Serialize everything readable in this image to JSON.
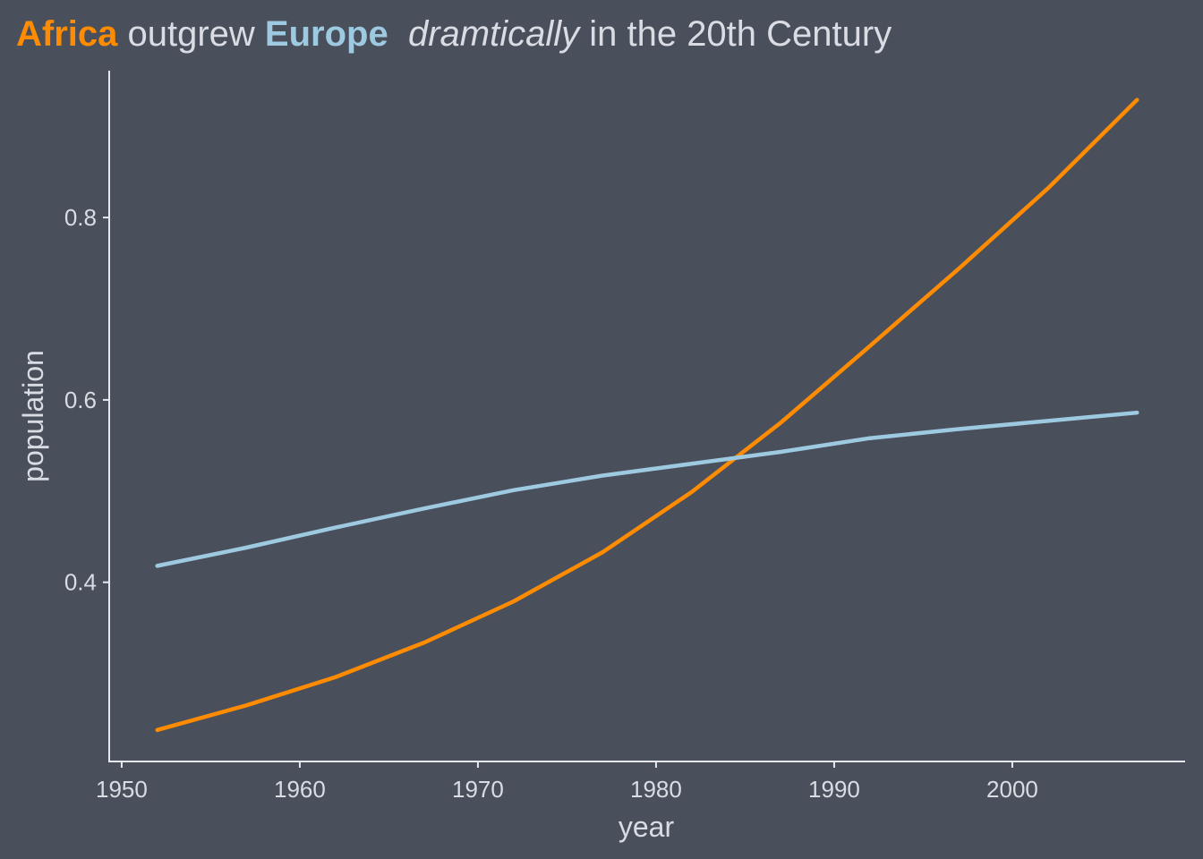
{
  "chart_data": {
    "type": "line",
    "title": {
      "africa_word": "Africa",
      "middle_text": " outgrew ",
      "europe_word": "Europe",
      "gap_text": "  ",
      "emphasis_word": "dramtically",
      "tail_text": " in the 20th Century"
    },
    "xlabel": "year",
    "ylabel": "population",
    "xlim": [
      1949.3,
      2009.7
    ],
    "ylim": [
      0.2035,
      0.961
    ],
    "x_ticks": [
      1950,
      1960,
      1970,
      1980,
      1990,
      2000
    ],
    "y_ticks": [
      0.4,
      0.6,
      0.8
    ],
    "x_tick_labels": [
      "1950",
      "1960",
      "1970",
      "1980",
      "1990",
      "2000"
    ],
    "y_tick_labels": [
      "0.4",
      "0.6",
      "0.8"
    ],
    "x": [
      1952,
      1957,
      1962,
      1967,
      1972,
      1977,
      1982,
      1987,
      1992,
      1997,
      2002,
      2007
    ],
    "series": [
      {
        "name": "Africa",
        "color": "#ff8c00",
        "values": [
          0.238,
          0.265,
          0.296,
          0.334,
          0.379,
          0.433,
          0.499,
          0.575,
          0.659,
          0.744,
          0.832,
          0.929
        ]
      },
      {
        "name": "Europe",
        "color": "#9ecae1",
        "values": [
          0.418,
          0.438,
          0.46,
          0.481,
          0.501,
          0.517,
          0.53,
          0.543,
          0.558,
          0.568,
          0.577,
          0.586
        ]
      }
    ]
  }
}
